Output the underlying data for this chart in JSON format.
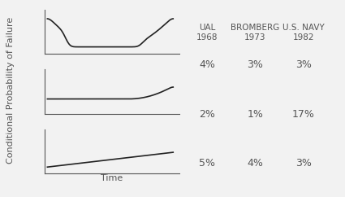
{
  "background_color": "#f0f0f0",
  "header_col1": "UAL\n1968",
  "header_col2": "BROMBERG\n1973",
  "header_col3": "U.S. NAVY\n1982",
  "row1_vals": [
    "4%",
    "3%",
    "3%"
  ],
  "row2_vals": [
    "2%",
    "1%",
    "17%"
  ],
  "row3_vals": [
    "5%",
    "4%",
    "3%"
  ],
  "ylabel": "Conditional Probability of Failure",
  "xlabel": "Time",
  "text_color": "#555555",
  "curve_color": "#222222",
  "header_fontsize": 7.5,
  "label_fontsize": 8,
  "val_fontsize": 9
}
